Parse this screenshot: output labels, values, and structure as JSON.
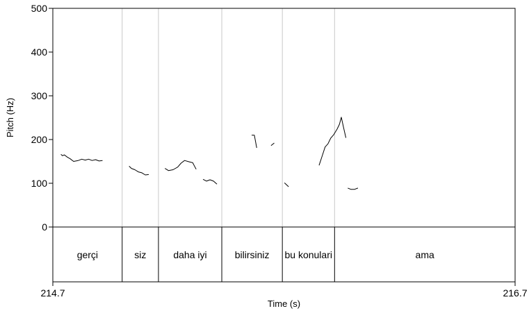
{
  "chart_data": {
    "type": "line",
    "xlabel": "Time (s)",
    "ylabel": "Pitch (Hz)",
    "xlim": [
      214.7,
      216.7
    ],
    "ylim": [
      0,
      500
    ],
    "x_tick_labels": [
      "214.7",
      "216.7"
    ],
    "y_ticks": [
      {
        "value": 0,
        "label": "0"
      },
      {
        "value": 100,
        "label": "100"
      },
      {
        "value": 200,
        "label": "200"
      },
      {
        "value": 300,
        "label": "300"
      },
      {
        "value": 400,
        "label": "400"
      },
      {
        "value": 500,
        "label": "500"
      }
    ],
    "word_boundaries": [
      214.7,
      215.0,
      215.157,
      215.431,
      215.693,
      215.919,
      216.7
    ],
    "words": [
      {
        "label": "gerçi",
        "start": 214.7,
        "end": 215.0
      },
      {
        "label": "siz",
        "start": 215.0,
        "end": 215.157
      },
      {
        "label": "daha iyi",
        "start": 215.157,
        "end": 215.431
      },
      {
        "label": "bilirsiniz",
        "start": 215.431,
        "end": 215.693
      },
      {
        "label": "bu konulari",
        "start": 215.693,
        "end": 215.919
      },
      {
        "label": "ama",
        "start": 215.919,
        "end": 216.7
      }
    ],
    "series": [
      {
        "points": [
          [
            214.735,
            166
          ],
          [
            214.742,
            163
          ],
          [
            214.75,
            165
          ],
          [
            214.762,
            160
          ],
          [
            214.775,
            156
          ],
          [
            214.79,
            150
          ],
          [
            214.81,
            152
          ],
          [
            214.825,
            155
          ],
          [
            214.84,
            153
          ],
          [
            214.855,
            155
          ],
          [
            214.87,
            152
          ],
          [
            214.885,
            154
          ],
          [
            214.9,
            151
          ],
          [
            214.915,
            152
          ]
        ]
      },
      {
        "points": [
          [
            215.03,
            139
          ],
          [
            215.04,
            134
          ],
          [
            215.055,
            131
          ],
          [
            215.07,
            126
          ],
          [
            215.085,
            124
          ],
          [
            215.1,
            119
          ],
          [
            215.115,
            120
          ]
        ]
      },
      {
        "points": [
          [
            215.185,
            134
          ],
          [
            215.2,
            129
          ],
          [
            215.22,
            131
          ],
          [
            215.24,
            137
          ],
          [
            215.255,
            146
          ],
          [
            215.27,
            152
          ],
          [
            215.29,
            149
          ],
          [
            215.305,
            147
          ],
          [
            215.315,
            137
          ],
          [
            215.32,
            132
          ]
        ]
      },
      {
        "points": [
          [
            215.35,
            109
          ],
          [
            215.365,
            105
          ],
          [
            215.38,
            108
          ],
          [
            215.395,
            105
          ],
          [
            215.41,
            98
          ]
        ]
      },
      {
        "points": [
          [
            215.56,
            210
          ],
          [
            215.572,
            210
          ],
          [
            215.582,
            181
          ]
        ]
      },
      {
        "points": [
          [
            215.644,
            186
          ],
          [
            215.658,
            192
          ]
        ]
      },
      {
        "points": [
          [
            215.702,
            101
          ],
          [
            215.72,
            92
          ]
        ]
      },
      {
        "points": [
          [
            215.852,
            141
          ],
          [
            215.865,
            162
          ],
          [
            215.878,
            183
          ],
          [
            215.89,
            190
          ],
          [
            215.902,
            203
          ],
          [
            215.915,
            211
          ],
          [
            215.93,
            224
          ],
          [
            215.94,
            235
          ],
          [
            215.948,
            251
          ],
          [
            215.958,
            227
          ],
          [
            215.968,
            204
          ]
        ]
      },
      {
        "points": [
          [
            215.976,
            89
          ],
          [
            215.99,
            86
          ],
          [
            216.005,
            86
          ],
          [
            216.02,
            89
          ]
        ]
      }
    ]
  }
}
